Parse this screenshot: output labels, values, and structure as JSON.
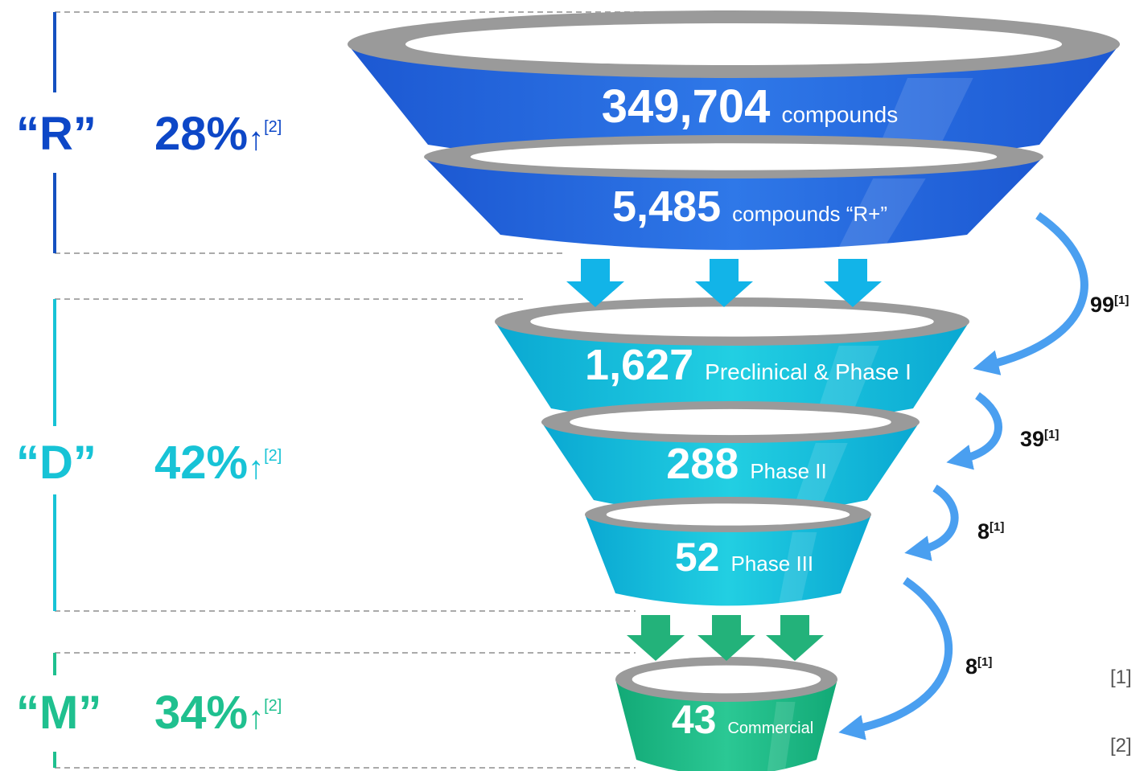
{
  "sections": [
    {
      "label": "“R”",
      "percent": "28%",
      "arrow": "↑",
      "note": "[2]"
    },
    {
      "label": "“D”",
      "percent": "42%",
      "arrow": "↑",
      "note": "[2]"
    },
    {
      "label": "“M”",
      "percent": "34%",
      "arrow": "↑",
      "note": "[2]"
    }
  ],
  "stages": [
    {
      "count": "349,704",
      "label": "compounds"
    },
    {
      "count": "5,485",
      "label": "compounds “R+”"
    },
    {
      "count": "1,627",
      "label": "Preclinical & Phase I"
    },
    {
      "count": "288",
      "label": "Phase II"
    },
    {
      "count": "52",
      "label": "Phase III"
    },
    {
      "count": "43",
      "label": "Commercial"
    }
  ],
  "transitions": [
    {
      "count": "99",
      "note": "[1]"
    },
    {
      "count": "39",
      "note": "[1]"
    },
    {
      "count": "8",
      "note": "[1]"
    },
    {
      "count": "8",
      "note": "[1]"
    }
  ],
  "footnotes": [
    "[1]",
    "[2]"
  ]
}
